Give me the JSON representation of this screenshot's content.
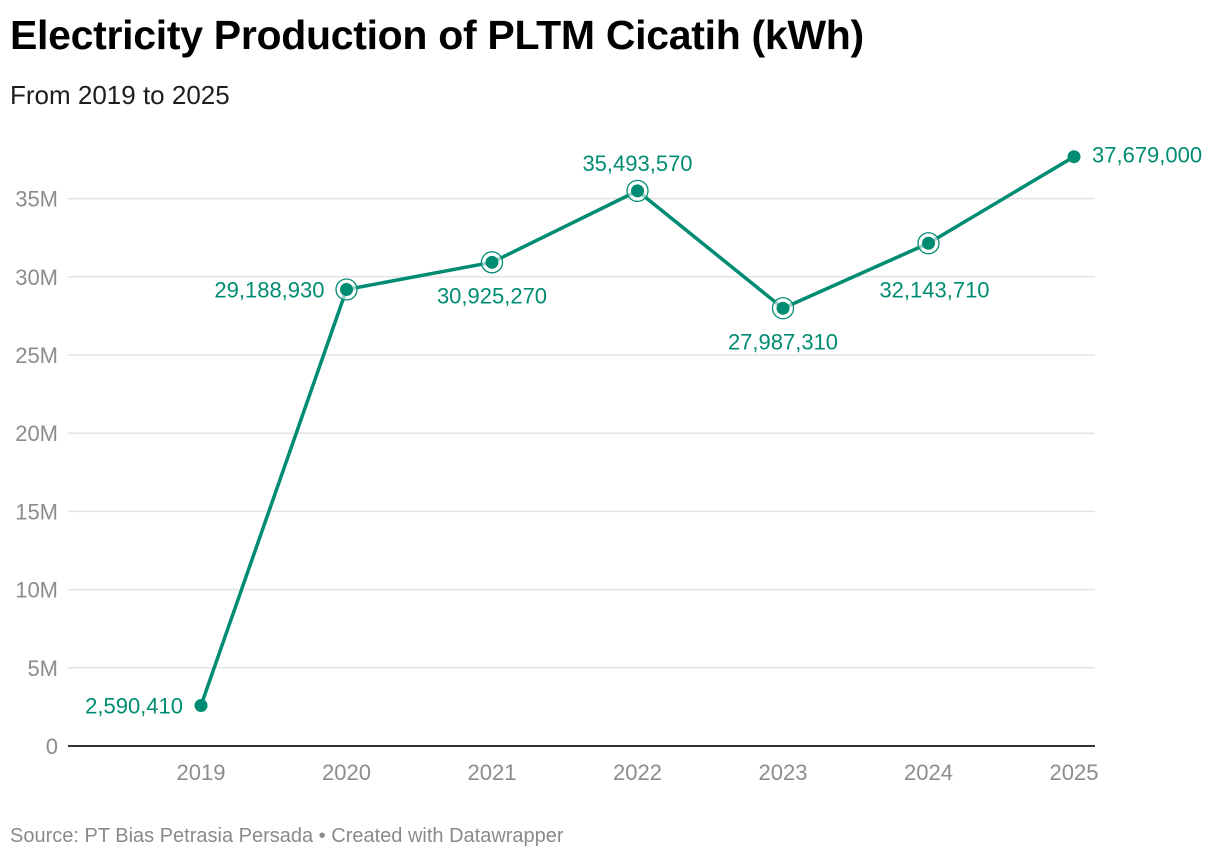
{
  "chart_data": {
    "type": "line",
    "title": "Electricity Production of PLTM Cicatih (kWh)",
    "subtitle": "From 2019 to 2025",
    "xlabel": "",
    "ylabel": "",
    "categories": [
      "2019",
      "2020",
      "2021",
      "2022",
      "2023",
      "2024",
      "2025"
    ],
    "series": [
      {
        "values": [
          2590410,
          29188930,
          30925270,
          35493570,
          27987310,
          32143710,
          37679000
        ],
        "data_labels": [
          "2,590,410",
          "29,188,930",
          "30,925,270",
          "35,493,570",
          "27,987,310",
          "32,143,710",
          "37,679,000"
        ],
        "color": "#008c73"
      }
    ],
    "ylim": [
      0,
      38000000
    ],
    "y_ticks": [
      0,
      5000000,
      10000000,
      15000000,
      20000000,
      25000000,
      30000000,
      35000000
    ],
    "y_tick_labels": [
      "0",
      "5M",
      "10M",
      "15M",
      "20M",
      "25M",
      "30M",
      "35M"
    ],
    "grid": true,
    "legend": "none"
  },
  "footer": {
    "source": "Source: PT Bias Petrasia Persada",
    "separator": " • ",
    "credit": "Created with Datawrapper"
  },
  "colors": {
    "line": "#008c73",
    "grid": "#e3e3e3",
    "axis": "#333333",
    "tick_text": "#8c8c8c"
  }
}
